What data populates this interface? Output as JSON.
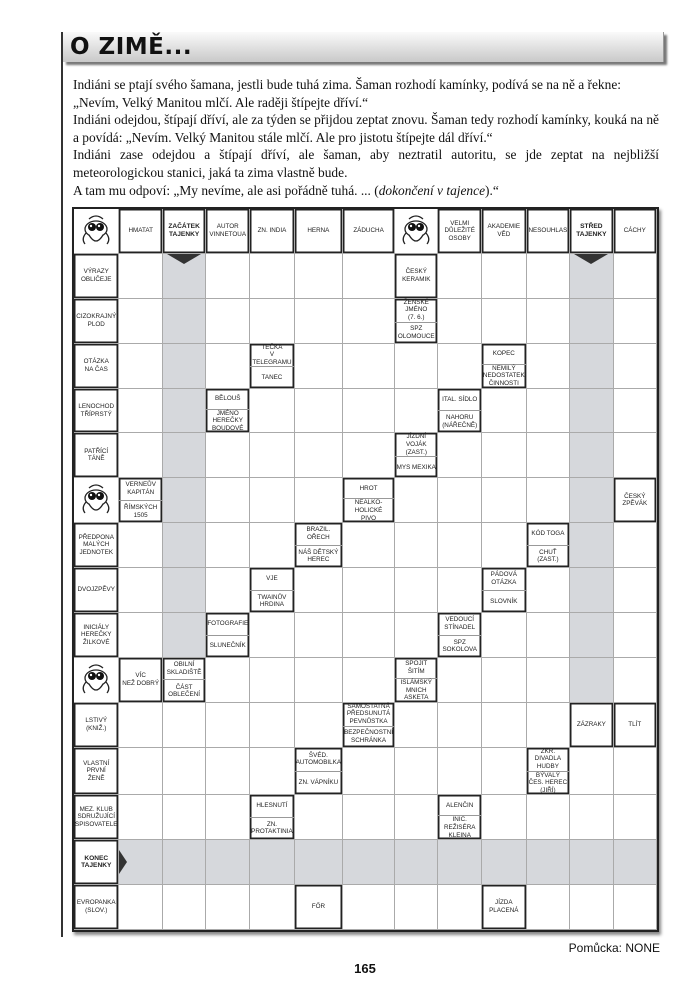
{
  "title": "O ZIMĚ...",
  "intro": [
    "Indiáni se ptají svého šamana, jestli bude tuhá zima. Šaman rozhodí kamínky, podívá se na ně a řekne:",
    "„Nevím, Velký Manitou mlčí. Ale raději štípejte dříví.“",
    "Indiáni odejdou, štípají dříví, ale za týden se přijdou zeptat znovu. Šaman tedy rozhodí kamínky, kouká na ně a povídá: „Nevím. Velký Manitou stále mlčí. Ale pro jistotu štípejte dál dříví.“",
    "Indiáni zase odejdou a štípají dříví, ale šaman, aby neztratil autoritu, se jde zeptat na nejbližší meteorologickou stanici, jaká ta zima vlastně bude.",
    "A tam mu odpoví: „My nevíme, ale asi pořádně tuhá. ... ("
  ],
  "intro_italic": "dokončení v tajence",
  "intro_end": ").“",
  "puzzle": {
    "columns": 13,
    "shade_color": "#d6d8dc",
    "shaded_columns": [
      {
        "col": 2,
        "from_row": 1,
        "to_row": 9
      },
      {
        "col": 11,
        "from_row": 1,
        "to_row": 10
      }
    ],
    "shaded_rows": [
      {
        "row": 14,
        "from_col": 1,
        "to_col": 12
      }
    ],
    "rows": [
      [
        {
          "m": 1
        },
        {
          "t": "HMATAT"
        },
        {
          "t": "ZAČÁTEK\nTAJENKY",
          "b": 1
        },
        {
          "t": "AUTOR\nVINNETOUA"
        },
        {
          "t": "ZN. INDIA"
        },
        {
          "t": "HERNA"
        },
        {
          "t": "ZÁDUCHA"
        },
        {
          "m": 1
        },
        {
          "t": "VELMI\nDŮLEŽITÉ\nOSOBY"
        },
        {
          "t": "AKADEMIE\nVĚD"
        },
        {
          "t": "NESOUHLAS"
        },
        {
          "t": "STŘED\nTAJENKY",
          "b": 1
        },
        {
          "t": "CÁCHY"
        }
      ],
      [
        {
          "t": "VÝRAZY\nOBLIČEJE"
        },
        {},
        {
          "a": "down"
        },
        {},
        {},
        {},
        {},
        {
          "t": "ČESKÝ\nKERAMIK"
        },
        {},
        {},
        {},
        {
          "a": "down"
        },
        {}
      ],
      [
        {
          "t": "CIZOKRAJNÝ\nPLOD"
        },
        {},
        {},
        {},
        {},
        {},
        {},
        {
          "d": [
            "ŽENSKÉ\nJMÉNO\n(7. 6.)",
            "SPZ\nOLOMOUCE"
          ]
        },
        {},
        {},
        {},
        {},
        {}
      ],
      [
        {
          "t": "OTÁZKA\nNA ČAS"
        },
        {},
        {},
        {},
        {
          "d": [
            "TEČKA\nV TELEGRAMU",
            "TANEC"
          ]
        },
        {},
        {},
        {},
        {},
        {
          "d": [
            "KOPEC",
            "NEMILÝ\nNEDOSTATEK\nČINNOSTI"
          ]
        },
        {},
        {},
        {}
      ],
      [
        {
          "t": "LENOCHOD\nTŘÍPRSTÝ"
        },
        {},
        {},
        {
          "d": [
            "BĚLOUŠ",
            "JMÉNO\nHEREČKY\nBOUDOVÉ"
          ]
        },
        {},
        {},
        {},
        {},
        {
          "d": [
            "ITAL. SÍDLO",
            "NAHORU\n(NÁŘEČNĚ)"
          ]
        },
        {},
        {},
        {},
        {}
      ],
      [
        {
          "t": "PATŘÍCÍ\nTÁNĚ"
        },
        {},
        {},
        {},
        {},
        {},
        {},
        {
          "d": [
            "JÍZDNÍ\nVOJÁK\n(ZAST.)",
            "MYS MEXIKA"
          ]
        },
        {},
        {},
        {},
        {},
        {}
      ],
      [
        {
          "m": 1
        },
        {
          "d": [
            "VERNEŮV\nKAPITÁN",
            "ŘÍMSKÝCH\n1505"
          ]
        },
        {},
        {},
        {},
        {},
        {
          "d": [
            "HROT",
            "NEALKO-\nHOLICKÉ\nPIVO"
          ]
        },
        {},
        {},
        {},
        {},
        {},
        {
          "t": "ČESKÝ\nZPĚVÁK"
        }
      ],
      [
        {
          "t": "PŘEDPONA\nMALÝCH\nJEDNOTEK"
        },
        {},
        {},
        {},
        {},
        {
          "d": [
            "BRAZIL.\nOŘECH",
            "NÁŠ DĚTSKÝ\nHEREC"
          ]
        },
        {},
        {},
        {},
        {},
        {
          "d": [
            "KÓD TOGA",
            "CHUŤ (ZAST.)"
          ]
        },
        {},
        {}
      ],
      [
        {
          "t": "DVOJZPĚVY"
        },
        {},
        {},
        {},
        {
          "d": [
            "VJE",
            "TWAINŮV\nHRDINA"
          ]
        },
        {},
        {},
        {},
        {},
        {
          "d": [
            "PÁDOVÁ\nOTÁZKA",
            "SLOVNÍK"
          ]
        },
        {},
        {},
        {}
      ],
      [
        {
          "t": "INICIÁLY\nHEREČKY\nŽILKOVÉ"
        },
        {},
        {},
        {
          "d": [
            "FOTOGRAFIE",
            "SLUNEČNÍK"
          ]
        },
        {},
        {},
        {},
        {},
        {
          "d": [
            "VEDOUCÍ\nSTÍNADEL",
            "SPZ\nSOKOLOVA"
          ]
        },
        {},
        {},
        {},
        {}
      ],
      [
        {
          "m": 1
        },
        {
          "t": "VÍC\nNEŽ DOBRÝ"
        },
        {
          "d": [
            "OBILNÍ\nSKLADIŠTĚ",
            "ČÁST\nOBLEČENÍ"
          ]
        },
        {},
        {},
        {},
        {},
        {
          "d": [
            "SPOJIT\nŠITÍM",
            "ISLÁMSKÝ\nMNICH\nASKETA"
          ]
        },
        {},
        {},
        {},
        {},
        {}
      ],
      [
        {
          "t": "LSTIVÝ\n(KNIŽ.)"
        },
        {},
        {},
        {},
        {},
        {},
        {
          "d": [
            "SAMOSTATNÁ\nPŘEDSUNUTÁ\nPEVNŮSTKA",
            "BEZPEČNOSTNÍ\nSCHRÁNKA"
          ]
        },
        {},
        {},
        {},
        {},
        {
          "t": "ZÁZRAKY"
        },
        {
          "t": "TLÍT"
        }
      ],
      [
        {
          "t": "VLASTNÍ\nPRVNÍ\nŽENĚ"
        },
        {},
        {},
        {},
        {},
        {
          "d": [
            "ŠVÉD.\nAUTOMOBILKA",
            "ZN. VÁPNÍKU"
          ]
        },
        {},
        {},
        {},
        {},
        {
          "d": [
            "ZKR. DIVADLA\nHUDBY",
            "BÝVALÝ\nČES. HEREC\n(JIŘÍ)"
          ]
        },
        {},
        {}
      ],
      [
        {
          "t": "MEZ. KLUB\nSDRUŽUJÍCÍ\nSPISOVATELE"
        },
        {},
        {},
        {},
        {
          "d": [
            "HLESNUTÍ",
            "ZN.\nPROTAKTINIA"
          ]
        },
        {},
        {},
        {},
        {
          "d": [
            "ALENČIN",
            "INIC.\nREŽISÉRA\nKLEINA"
          ]
        },
        {},
        {},
        {},
        {}
      ],
      [
        {
          "t": "KONEC\nTAJENKY",
          "b": 1
        },
        {
          "a": "right"
        },
        {},
        {},
        {},
        {},
        {},
        {},
        {},
        {},
        {},
        {},
        {}
      ],
      [
        {
          "t": "EVROPANKA\n(SLOV.)"
        },
        {},
        {},
        {},
        {},
        {
          "t": "FŐR"
        },
        {},
        {},
        {},
        {
          "t": "JÍZDA\nPLACENÁ"
        },
        {},
        {},
        {}
      ]
    ]
  },
  "hint": "Pomůcka: NONE",
  "page_number": "165"
}
